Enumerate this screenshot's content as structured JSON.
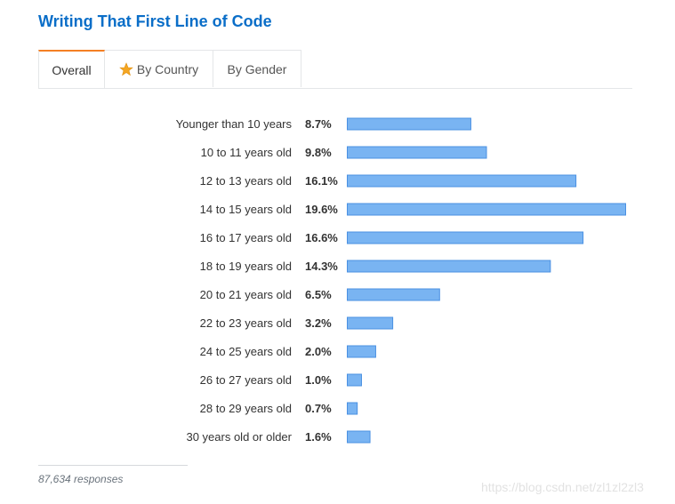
{
  "header": {
    "title": "Writing That First Line of Code"
  },
  "tabs": [
    {
      "label": "Overall",
      "active": true
    },
    {
      "label": "By Country",
      "icon": "star-icon",
      "active": false
    },
    {
      "label": "By Gender",
      "active": false
    }
  ],
  "chart_data": {
    "type": "bar",
    "orientation": "horizontal",
    "categories": [
      "Younger than 10 years",
      "10 to 11 years old",
      "12 to 13 years old",
      "14 to 15 years old",
      "16 to 17 years old",
      "18 to 19 years old",
      "20 to 21 years old",
      "22 to 23 years old",
      "24 to 25 years old",
      "26 to 27 years old",
      "28 to 29 years old",
      "30 years old or older"
    ],
    "values": [
      8.7,
      9.8,
      16.1,
      19.6,
      16.6,
      14.3,
      6.5,
      3.2,
      2.0,
      1.0,
      0.7,
      1.6
    ],
    "value_labels": [
      "8.7%",
      "9.8%",
      "16.1%",
      "19.6%",
      "16.6%",
      "14.3%",
      "6.5%",
      "3.2%",
      "2.0%",
      "1.0%",
      "0.7%",
      "1.6%"
    ],
    "unit": "%",
    "bar_color": "#79b4f2",
    "bar_border_color": "#4a90e2"
  },
  "footer": {
    "responses": "87,634 responses"
  },
  "watermark": "https://blog.csdn.net/zl1zl2zl3",
  "colors": {
    "title": "#0a6ec8",
    "tab_active_accent": "#f48024",
    "star": "#f4a623"
  }
}
